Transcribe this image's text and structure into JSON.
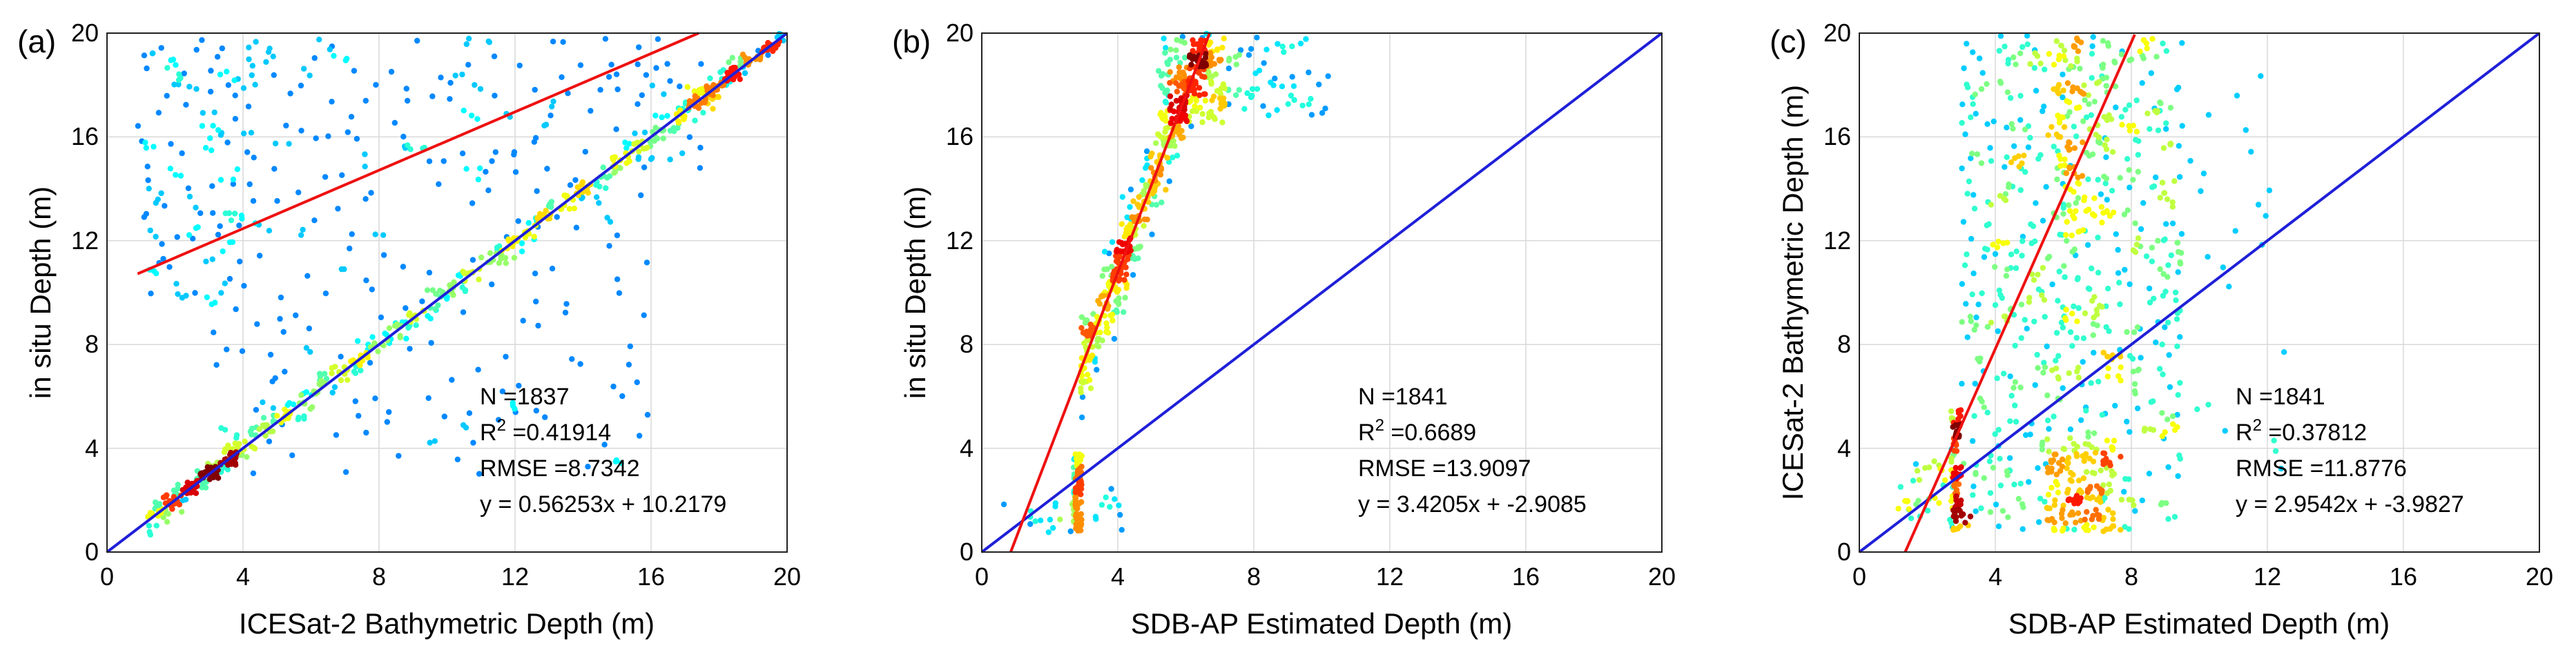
{
  "figure": {
    "panel_count": 3
  },
  "chart_data": [
    {
      "type": "scatter",
      "panel_label": "(a)",
      "xlabel": "ICESat-2 Bathymetric Depth (m)",
      "ylabel": "in situ Depth (m)",
      "xlim": [
        0,
        20
      ],
      "ylim": [
        0,
        20
      ],
      "xticks": [
        "0",
        "4",
        "8",
        "12",
        "16",
        "20"
      ],
      "yticks": [
        "0",
        "4",
        "8",
        "12",
        "16",
        "20"
      ],
      "grid": true,
      "colormap": "jet (point density)",
      "stats": {
        "n": "N =1837",
        "r2_prefix": "R",
        "r2_sup": "2",
        "r2_value": " =0.41914",
        "rmse": "RMSE =8.7342",
        "equation": "y = 0.56253x + 10.2179"
      },
      "fit_line": {
        "slope": 0.56253,
        "intercept": 10.2179,
        "x_range": [
          0.9,
          17.4
        ],
        "color": "#ee1111"
      },
      "reference_line": {
        "label": "1:1",
        "slope": 1,
        "intercept": 0,
        "color": "#1f1fd9"
      },
      "clusters": [
        {
          "n": 430,
          "x": [
            1.2,
            18.8
          ],
          "pattern": "along-1:1",
          "noise": 0.55
        },
        {
          "n": 110,
          "x": [
            1.5,
            4.0
          ],
          "pattern": "along-1:1",
          "noise": 0.4,
          "dense": true
        },
        {
          "n": 90,
          "x": [
            16.8,
            19.9
          ],
          "pattern": "along-1:1",
          "noise": 0.35,
          "dense": true
        },
        {
          "n": 110,
          "x": [
            0.9,
            4.5
          ],
          "y": [
            9.5,
            19.8
          ],
          "pattern": "box"
        },
        {
          "n": 140,
          "x": [
            3.0,
            17.5
          ],
          "y": [
            14.5,
            19.8
          ],
          "pattern": "box"
        },
        {
          "n": 150,
          "x": [
            3.0,
            16.0
          ],
          "y": [
            3.0,
            14.5
          ],
          "pattern": "box"
        }
      ]
    },
    {
      "type": "scatter",
      "panel_label": "(b)",
      "xlabel": "SDB-AP Estimated Depth (m)",
      "ylabel": "in situ Depth (m)",
      "xlim": [
        0,
        20
      ],
      "ylim": [
        0,
        20
      ],
      "xticks": [
        "0",
        "4",
        "8",
        "12",
        "16",
        "20"
      ],
      "yticks": [
        "0",
        "4",
        "8",
        "12",
        "16",
        "20"
      ],
      "grid": true,
      "colormap": "jet (point density)",
      "stats": {
        "n": "N =1841",
        "r2_prefix": "R",
        "r2_sup": "2",
        "r2_value": " =0.6689",
        "rmse": "RMSE =13.9097",
        "equation": "y = 3.4205x + -2.9085"
      },
      "fit_line": {
        "slope": 3.4205,
        "intercept": -2.9085,
        "x_range": [
          0.85,
          6.7
        ],
        "color": "#ee1111"
      },
      "reference_line": {
        "label": "1:1",
        "slope": 1,
        "intercept": 0,
        "color": "#1f1fd9"
      },
      "clusters": [
        {
          "n": 480,
          "x": [
            2.9,
            7.2
          ],
          "pattern": "along-fit",
          "noise": 1.6
        },
        {
          "n": 120,
          "x": [
            5.2,
            7.3
          ],
          "y": [
            16.5,
            19.9
          ],
          "pattern": "box",
          "dense": true
        },
        {
          "n": 90,
          "x": [
            2.7,
            2.95
          ],
          "y": [
            0.8,
            3.8
          ],
          "pattern": "box",
          "dense": true
        },
        {
          "n": 60,
          "x": [
            6.5,
            10.2
          ],
          "y": [
            16.8,
            19.9
          ],
          "pattern": "box"
        },
        {
          "n": 25,
          "x": [
            0.5,
            4.5
          ],
          "y": [
            0.7,
            2.5
          ],
          "pattern": "box"
        }
      ]
    },
    {
      "type": "scatter",
      "panel_label": "(c)",
      "xlabel": "SDB-AP Estimated Depth (m)",
      "ylabel": "ICESat-2 Bathymetric Depth (m)",
      "xlim": [
        0,
        20
      ],
      "ylim": [
        0,
        20
      ],
      "xticks": [
        "0",
        "4",
        "8",
        "12",
        "16",
        "20"
      ],
      "yticks": [
        "0",
        "4",
        "8",
        "12",
        "16",
        "20"
      ],
      "grid": true,
      "colormap": "jet (point density)",
      "stats": {
        "n": "N =1841",
        "r2_prefix": "R",
        "r2_sup": "2",
        "r2_value": " =0.37812",
        "rmse": "RMSE =11.8776",
        "equation": "y = 2.9542x + -3.9827"
      },
      "fit_line": {
        "slope": 2.9542,
        "intercept": -3.9827,
        "x_range": [
          1.35,
          8.1
        ],
        "color": "#ee1111"
      },
      "reference_line": {
        "label": "1:1",
        "slope": 1,
        "intercept": 0,
        "color": "#1f1fd9"
      },
      "clusters": [
        {
          "n": 620,
          "x": [
            3.0,
            9.5
          ],
          "y": [
            0.8,
            19.9
          ],
          "pattern": "box"
        },
        {
          "n": 120,
          "x": [
            5.5,
            7.5
          ],
          "y": [
            0.8,
            4.0
          ],
          "pattern": "box",
          "dense": true
        },
        {
          "n": 110,
          "x": [
            5.8,
            7.3
          ],
          "y": [
            12.0,
            19.9
          ],
          "pattern": "box",
          "dense": true
        },
        {
          "n": 90,
          "x": [
            2.7,
            3.0
          ],
          "y": [
            0.8,
            5.5
          ],
          "pattern": "box",
          "dense": true
        },
        {
          "n": 40,
          "x": [
            1.0,
            3.5
          ],
          "y": [
            1.2,
            3.5
          ],
          "pattern": "box"
        },
        {
          "n": 25,
          "x": [
            9.0,
            12.5
          ],
          "y": [
            3.0,
            18.5
          ],
          "pattern": "box"
        }
      ]
    }
  ]
}
